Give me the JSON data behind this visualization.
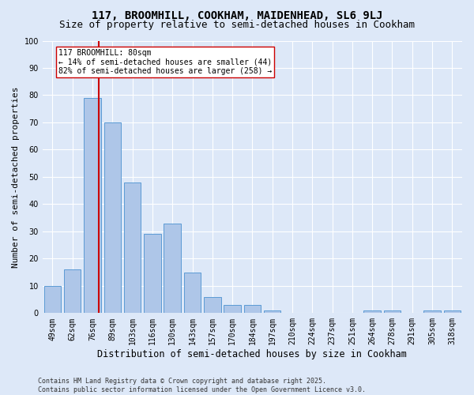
{
  "title": "117, BROOMHILL, COOKHAM, MAIDENHEAD, SL6 9LJ",
  "subtitle": "Size of property relative to semi-detached houses in Cookham",
  "xlabel": "Distribution of semi-detached houses by size in Cookham",
  "ylabel": "Number of semi-detached properties",
  "categories": [
    "49sqm",
    "62sqm",
    "76sqm",
    "89sqm",
    "103sqm",
    "116sqm",
    "130sqm",
    "143sqm",
    "157sqm",
    "170sqm",
    "184sqm",
    "197sqm",
    "210sqm",
    "224sqm",
    "237sqm",
    "251sqm",
    "264sqm",
    "278sqm",
    "291sqm",
    "305sqm",
    "318sqm"
  ],
  "values": [
    10,
    16,
    79,
    70,
    48,
    29,
    33,
    15,
    6,
    3,
    3,
    1,
    0,
    0,
    0,
    0,
    1,
    1,
    0,
    1,
    1
  ],
  "bar_color": "#aec6e8",
  "bar_edge_color": "#5b9bd5",
  "vline_pos": 2.31,
  "vline_color": "#cc0000",
  "annotation_text": "117 BROOMHILL: 80sqm\n← 14% of semi-detached houses are smaller (44)\n82% of semi-detached houses are larger (258) →",
  "annotation_box_color": "#ffffff",
  "annotation_box_edge": "#cc0000",
  "ylim": [
    0,
    100
  ],
  "yticks": [
    0,
    10,
    20,
    30,
    40,
    50,
    60,
    70,
    80,
    90,
    100
  ],
  "background_color": "#dde8f8",
  "grid_color": "#ffffff",
  "footer_text": "Contains HM Land Registry data © Crown copyright and database right 2025.\nContains public sector information licensed under the Open Government Licence v3.0.",
  "title_fontsize": 10,
  "subtitle_fontsize": 9,
  "xlabel_fontsize": 8.5,
  "ylabel_fontsize": 8,
  "tick_fontsize": 7,
  "annotation_fontsize": 7,
  "footer_fontsize": 6
}
